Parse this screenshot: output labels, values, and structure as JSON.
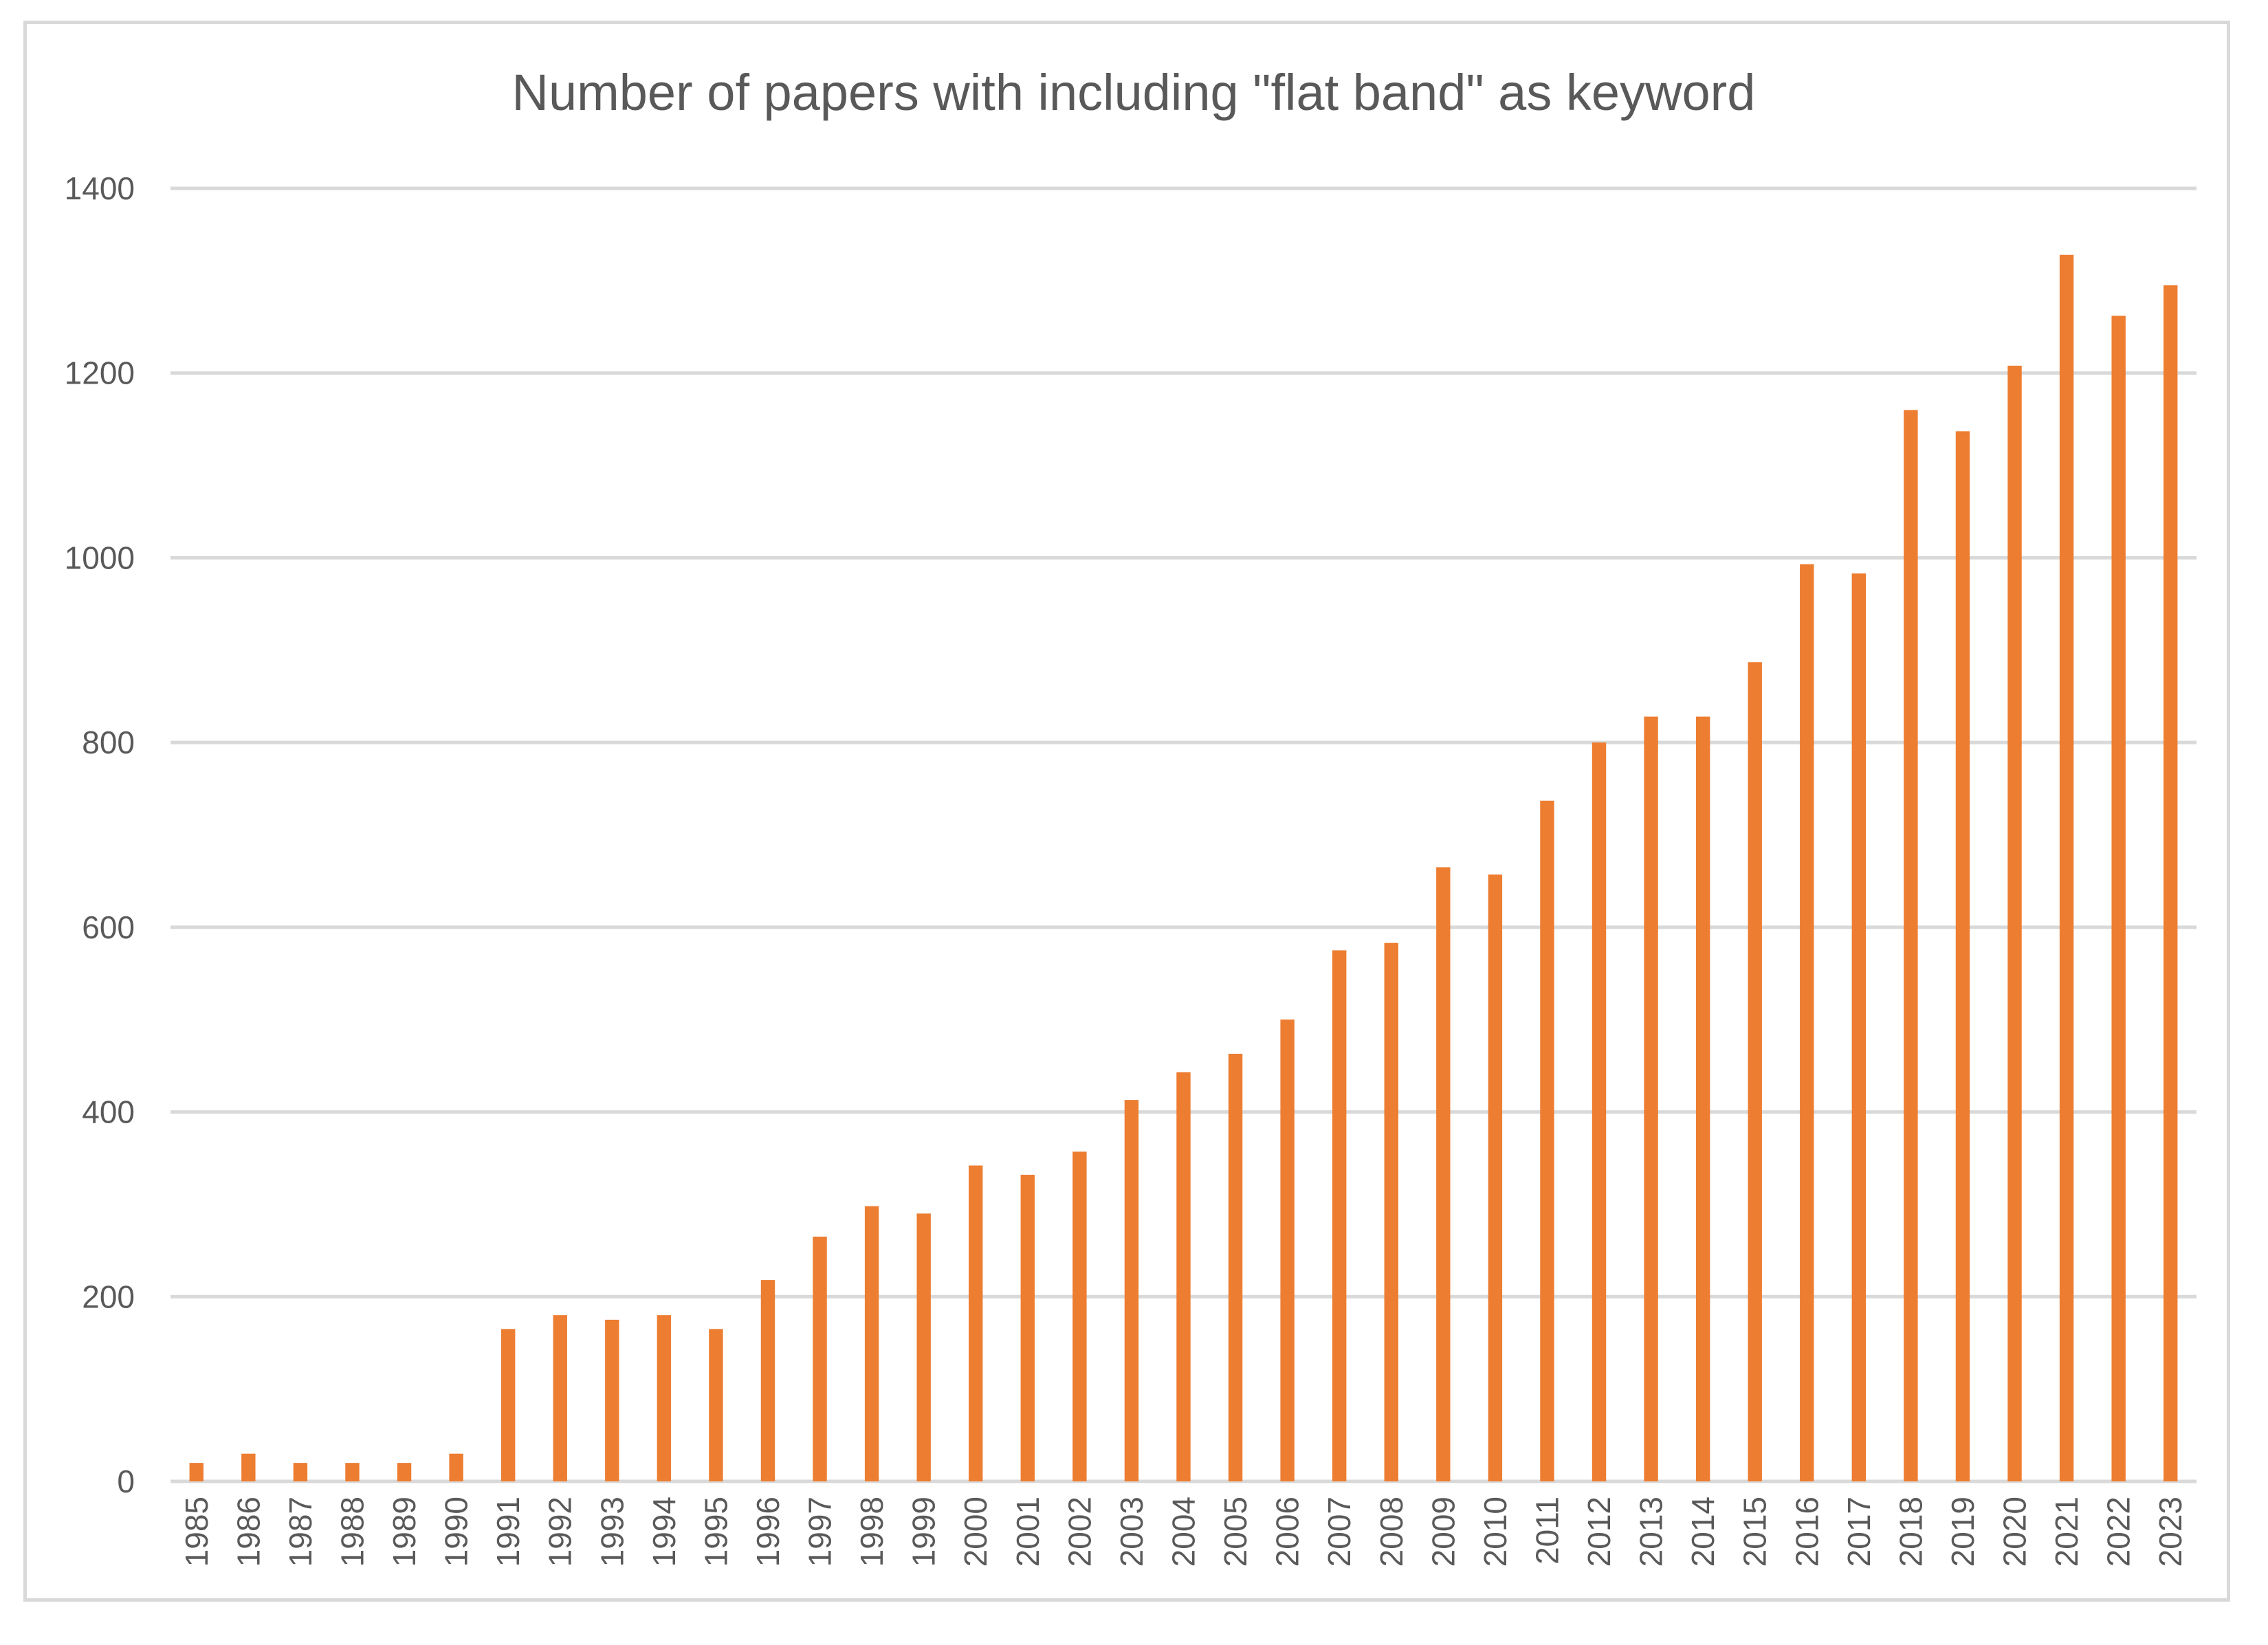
{
  "chart_data": {
    "type": "bar",
    "title": "Number of papers with including \"flat band\" as keyword",
    "xlabel": "",
    "ylabel": "",
    "categories": [
      "1985",
      "1986",
      "1987",
      "1988",
      "1989",
      "1990",
      "1991",
      "1992",
      "1993",
      "1994",
      "1995",
      "1996",
      "1997",
      "1998",
      "1999",
      "2000",
      "2001",
      "2002",
      "2003",
      "2004",
      "2005",
      "2006",
      "2007",
      "2008",
      "2009",
      "2010",
      "2011",
      "2012",
      "2013",
      "2014",
      "2015",
      "2016",
      "2017",
      "2018",
      "2019",
      "2020",
      "2021",
      "2022",
      "2023"
    ],
    "values": [
      20,
      30,
      20,
      20,
      20,
      30,
      165,
      180,
      175,
      180,
      165,
      218,
      265,
      298,
      290,
      342,
      332,
      357,
      413,
      443,
      463,
      500,
      575,
      583,
      665,
      657,
      737,
      800,
      828,
      828,
      887,
      993,
      983,
      1160,
      1137,
      1208,
      1328,
      1262,
      1295
    ],
    "ylim": [
      0,
      1400
    ],
    "yticks": [
      0,
      200,
      400,
      600,
      800,
      1000,
      1200,
      1400
    ],
    "grid": true,
    "legend": "none",
    "bar_color": "#ED7D31",
    "grid_color": "#d9d9d9"
  }
}
